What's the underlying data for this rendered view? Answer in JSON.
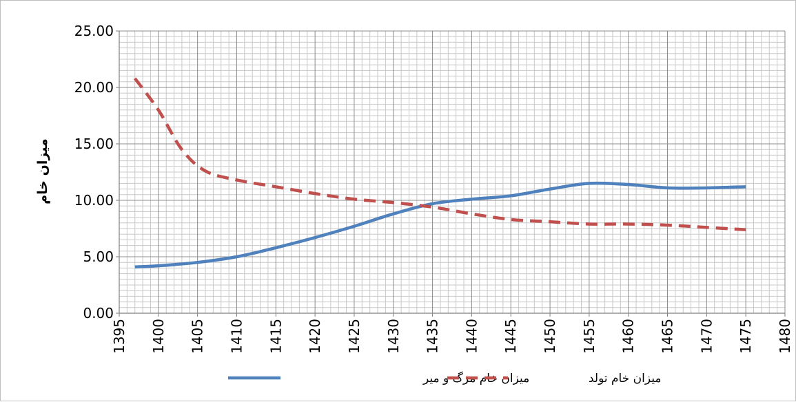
{
  "chart_data": {
    "type": "line",
    "title": "",
    "xlabel": "",
    "ylabel": "میزان خام",
    "xlim": [
      1395,
      1480
    ],
    "ylim": [
      0,
      25
    ],
    "x_ticks": [
      "1395",
      "1400",
      "1405",
      "1410",
      "1415",
      "1420",
      "1425",
      "1430",
      "1435",
      "1440",
      "1445",
      "1450",
      "1455",
      "1460",
      "1465",
      "1470",
      "1475",
      "1480"
    ],
    "y_ticks": [
      "0.00",
      "5.00",
      "10.00",
      "15.00",
      "20.00",
      "25.00"
    ],
    "grid": true,
    "legend_position": "bottom",
    "series": [
      {
        "name": "میزان خام مرگ و میر",
        "color": "#4f81bd",
        "style": "solid",
        "x": [
          1397,
          1400,
          1405,
          1410,
          1415,
          1420,
          1425,
          1430,
          1435,
          1440,
          1445,
          1450,
          1455,
          1460,
          1465,
          1470,
          1475
        ],
        "values": [
          4.1,
          4.2,
          4.5,
          5.0,
          5.8,
          6.7,
          7.7,
          8.8,
          9.7,
          10.1,
          10.4,
          11.0,
          11.5,
          11.4,
          11.1,
          11.1,
          11.2
        ]
      },
      {
        "name": "میزان خام تولد",
        "color": "#c0504d",
        "style": "dashed",
        "x": [
          1397,
          1400,
          1403,
          1406,
          1410,
          1415,
          1420,
          1425,
          1430,
          1435,
          1440,
          1445,
          1450,
          1455,
          1460,
          1465,
          1470,
          1475
        ],
        "values": [
          20.8,
          18.0,
          14.5,
          12.6,
          11.8,
          11.2,
          10.6,
          10.1,
          9.8,
          9.4,
          8.8,
          8.3,
          8.1,
          7.9,
          7.9,
          7.8,
          7.6,
          7.4
        ]
      }
    ]
  }
}
